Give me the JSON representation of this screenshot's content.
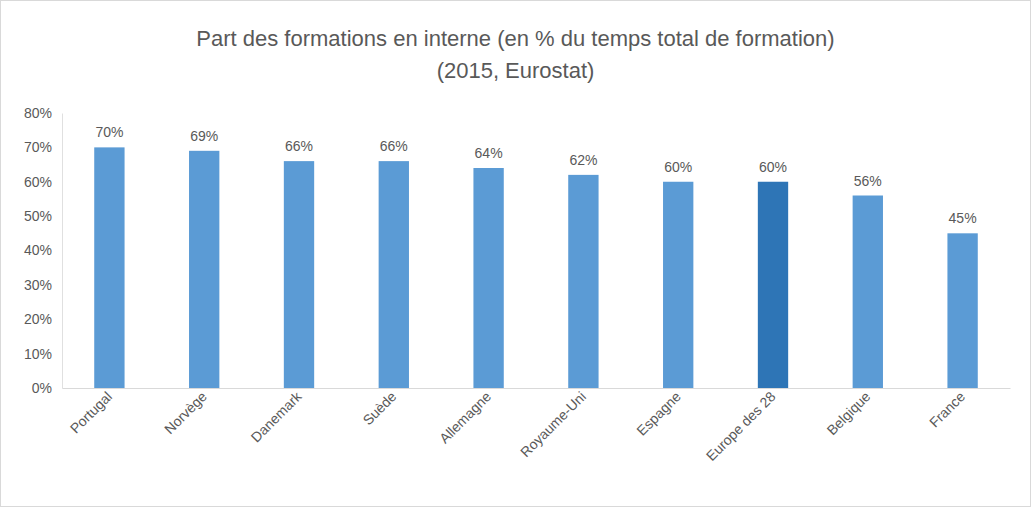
{
  "chart_data": {
    "type": "bar",
    "title": "Part des formations en interne (en % du temps total de formation)",
    "subtitle": "(2015, Eurostat)",
    "categories": [
      "Portugal",
      "Norvège",
      "Danemark",
      "Suède",
      "Allemagne",
      "Royaume-Uni",
      "Espagne",
      "Europe des 28",
      "Belgique",
      "France"
    ],
    "values": [
      70,
      69,
      66,
      66,
      64,
      62,
      60,
      60,
      56,
      45
    ],
    "value_labels": [
      "70%",
      "69%",
      "66%",
      "66%",
      "64%",
      "62%",
      "60%",
      "60%",
      "56%",
      "45%"
    ],
    "colors": [
      "#5b9bd5",
      "#5b9bd5",
      "#5b9bd5",
      "#5b9bd5",
      "#5b9bd5",
      "#5b9bd5",
      "#5b9bd5",
      "#2e75b6",
      "#5b9bd5",
      "#5b9bd5"
    ],
    "ylim": [
      0,
      80
    ],
    "yticks": [
      {
        "value": 0,
        "label": "0%"
      },
      {
        "value": 10,
        "label": "10%"
      },
      {
        "value": 20,
        "label": "20%"
      },
      {
        "value": 30,
        "label": "30%"
      },
      {
        "value": 40,
        "label": "40%"
      },
      {
        "value": 50,
        "label": "50%"
      },
      {
        "value": 60,
        "label": "60%"
      },
      {
        "value": 70,
        "label": "70%"
      },
      {
        "value": 80,
        "label": "80%"
      }
    ],
    "grid": false,
    "data_labels": true
  }
}
